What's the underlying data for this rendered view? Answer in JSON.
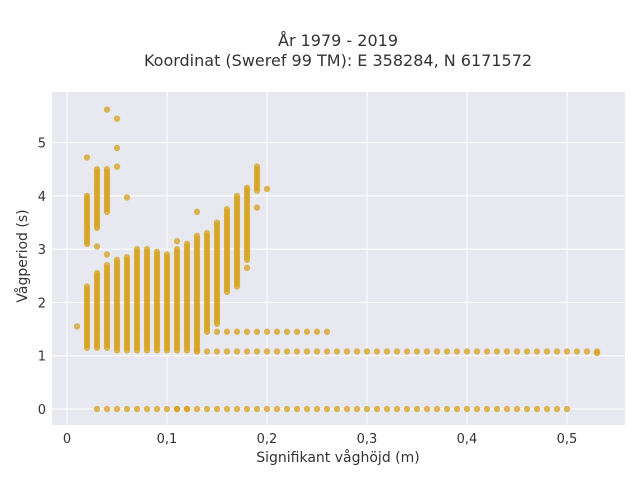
{
  "chart_data": {
    "type": "scatter",
    "title_lines": [
      "År 1979 - 2019",
      "Koordinat (Sweref 99 TM): E 358284, N 6171572"
    ],
    "xlabel": "Signifikant våghöjd (m)",
    "ylabel": "Vågperiod (s)",
    "xlim": [
      -0.015,
      0.558
    ],
    "ylim": [
      -0.3,
      5.95
    ],
    "x_ticks": [
      0,
      0.1,
      0.2,
      0.3,
      0.4,
      0.5
    ],
    "x_tick_labels": [
      "0",
      "0,1",
      "0,2",
      "0,3",
      "0,4",
      "0,5"
    ],
    "y_ticks": [
      0,
      1,
      2,
      3,
      4,
      5
    ],
    "y_tick_labels": [
      "0",
      "1",
      "2",
      "3",
      "4",
      "5"
    ],
    "grid": true,
    "legend": "none",
    "marker_color": "#d6a21e",
    "background_color": "#e8e9f0",
    "columns": [
      {
        "x": 0.02,
        "y_range": [
          1.15,
          2.3
        ]
      },
      {
        "x": 0.03,
        "y_range": [
          1.15,
          2.55
        ]
      },
      {
        "x": 0.04,
        "y_range": [
          1.15,
          2.7
        ]
      },
      {
        "x": 0.05,
        "y_range": [
          1.1,
          2.8
        ]
      },
      {
        "x": 0.06,
        "y_range": [
          1.1,
          2.85
        ]
      },
      {
        "x": 0.07,
        "y_range": [
          1.1,
          3.0
        ]
      },
      {
        "x": 0.08,
        "y_range": [
          1.1,
          3.0
        ]
      },
      {
        "x": 0.09,
        "y_range": [
          1.1,
          2.95
        ]
      },
      {
        "x": 0.1,
        "y_range": [
          1.1,
          2.9
        ]
      },
      {
        "x": 0.11,
        "y_range": [
          1.1,
          3.0
        ]
      },
      {
        "x": 0.12,
        "y_range": [
          1.1,
          3.1
        ]
      },
      {
        "x": 0.13,
        "y_range": [
          1.1,
          3.25
        ]
      },
      {
        "x": 0.14,
        "y_range": [
          1.5,
          3.3
        ]
      },
      {
        "x": 0.15,
        "y_range": [
          1.6,
          3.5
        ]
      },
      {
        "x": 0.16,
        "y_range": [
          2.2,
          3.75
        ]
      },
      {
        "x": 0.17,
        "y_range": [
          2.3,
          4.0
        ]
      },
      {
        "x": 0.18,
        "y_range": [
          2.8,
          4.15
        ]
      },
      {
        "x": 0.19,
        "y_range": [
          4.1,
          4.55
        ]
      }
    ],
    "upper_cluster": [
      {
        "x": 0.02,
        "y_range": [
          3.1,
          4.0
        ]
      },
      {
        "x": 0.03,
        "y_range": [
          3.4,
          4.5
        ]
      },
      {
        "x": 0.04,
        "y_range": [
          3.7,
          4.5
        ]
      }
    ],
    "band_y": [
      0,
      1.08,
      1.45
    ],
    "band_x_ranges": [
      [
        0.03,
        0.5
      ],
      [
        0.13,
        0.53
      ],
      [
        0.14,
        0.26
      ]
    ],
    "outliers": [
      {
        "x": 0.01,
        "y": 1.55
      },
      {
        "x": 0.04,
        "y": 5.62
      },
      {
        "x": 0.05,
        "y": 5.45
      },
      {
        "x": 0.05,
        "y": 4.9
      },
      {
        "x": 0.05,
        "y": 4.55
      },
      {
        "x": 0.02,
        "y": 4.72
      },
      {
        "x": 0.06,
        "y": 3.97
      },
      {
        "x": 0.03,
        "y": 3.05
      },
      {
        "x": 0.04,
        "y": 2.9
      },
      {
        "x": 0.11,
        "y": 3.15
      },
      {
        "x": 0.13,
        "y": 3.7
      },
      {
        "x": 0.19,
        "y": 3.78
      },
      {
        "x": 0.2,
        "y": 4.13
      },
      {
        "x": 0.18,
        "y": 2.65
      },
      {
        "x": 0.53,
        "y": 1.05
      },
      {
        "x": 0.12,
        "y": 0.0
      },
      {
        "x": 0.11,
        "y": 0.0
      }
    ]
  }
}
